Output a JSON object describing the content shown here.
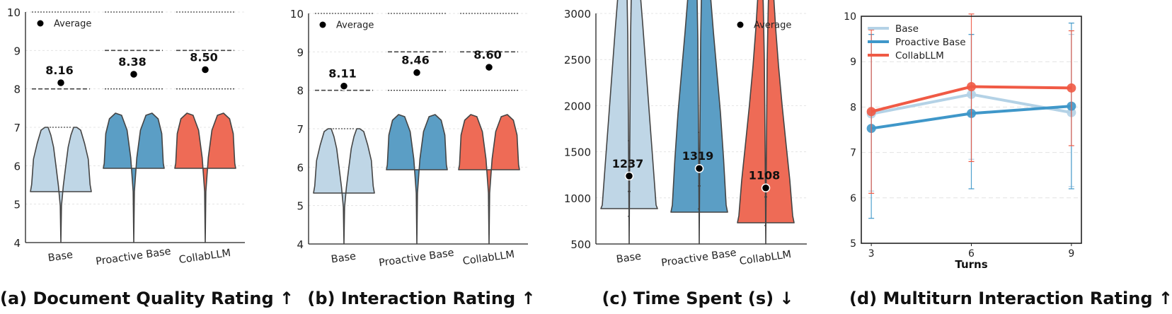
{
  "colors": {
    "base": "#bfd6e6",
    "proactive": "#5b9ec5",
    "collab": "#ee6b56",
    "base_line": "#b4d2e6",
    "proactive_line": "#3f97c9",
    "collab_line": "#f05a45",
    "outline": "#444444"
  },
  "chart_data": [
    {
      "type": "violin",
      "title": "",
      "caption": "(a) Document Quality Rating ↑",
      "categories": [
        "Base",
        "Proactive Base",
        "CollabLLM"
      ],
      "ylim": [
        4,
        10
      ],
      "yticks": [
        4,
        5,
        6,
        7,
        8,
        9,
        10
      ],
      "averages": [
        8.16,
        8.38,
        8.5
      ],
      "average_labels": [
        "8.16",
        "8.38",
        "8.50"
      ],
      "quartiles": [
        [
          7,
          8,
          10
        ],
        [
          8,
          9,
          10
        ],
        [
          8,
          9,
          10
        ]
      ],
      "legend": "Average",
      "legend_position": "top-left",
      "grid": true
    },
    {
      "type": "violin",
      "title": "",
      "caption": "(b) Interaction Rating ↑",
      "categories": [
        "Base",
        "Proactive Base",
        "CollabLLM"
      ],
      "ylim": [
        4,
        10
      ],
      "yticks": [
        4,
        5,
        6,
        7,
        8,
        9,
        10
      ],
      "averages": [
        8.11,
        8.46,
        8.6
      ],
      "average_labels": [
        "8.11",
        "8.46",
        "8.60"
      ],
      "quartiles": [
        [
          7,
          8,
          10
        ],
        [
          8,
          9,
          10
        ],
        [
          8,
          9,
          10
        ]
      ],
      "legend": "Average",
      "legend_position": "top-left",
      "grid": true
    },
    {
      "type": "violin",
      "title": "",
      "caption": "(c) Time Spent (s) ↓",
      "categories": [
        "Base",
        "Proactive Base",
        "CollabLLM"
      ],
      "ylim": [
        500,
        3000
      ],
      "yticks": [
        500,
        1000,
        1500,
        2000,
        2500,
        3000
      ],
      "averages": [
        1237,
        1319,
        1108
      ],
      "average_labels": [
        "1237",
        "1319",
        "1108"
      ],
      "quartiles": [
        [
          800,
          1070,
          1620
        ],
        [
          880,
          1130,
          1710
        ],
        [
          700,
          1010,
          1260
        ]
      ],
      "legend": "Average",
      "legend_position": "top-right",
      "grid": true
    },
    {
      "type": "line",
      "title": "",
      "caption": "(d) Multiturn Interaction Rating ↑",
      "xlabel": "Turns",
      "x": [
        3,
        6,
        9
      ],
      "xticks": [
        3,
        6,
        9
      ],
      "ylim": [
        5,
        10
      ],
      "yticks": [
        5,
        6,
        7,
        8,
        9,
        10
      ],
      "legend_position": "top-left",
      "grid": true,
      "series": [
        {
          "name": "Base",
          "values": [
            7.85,
            8.28,
            7.88
          ],
          "err_low": [
            6.15,
            6.85,
            6.25
          ],
          "err_high": [
            9.6,
            9.6,
            9.6
          ]
        },
        {
          "name": "Proactive Base",
          "values": [
            7.53,
            7.86,
            8.02
          ],
          "err_low": [
            5.55,
            6.2,
            6.2
          ],
          "err_high": [
            9.6,
            9.6,
            9.85
          ]
        },
        {
          "name": "CollabLLM",
          "values": [
            7.9,
            8.45,
            8.42
          ],
          "err_low": [
            6.1,
            6.8,
            7.15
          ],
          "err_high": [
            9.7,
            10.05,
            9.68
          ]
        }
      ]
    }
  ]
}
